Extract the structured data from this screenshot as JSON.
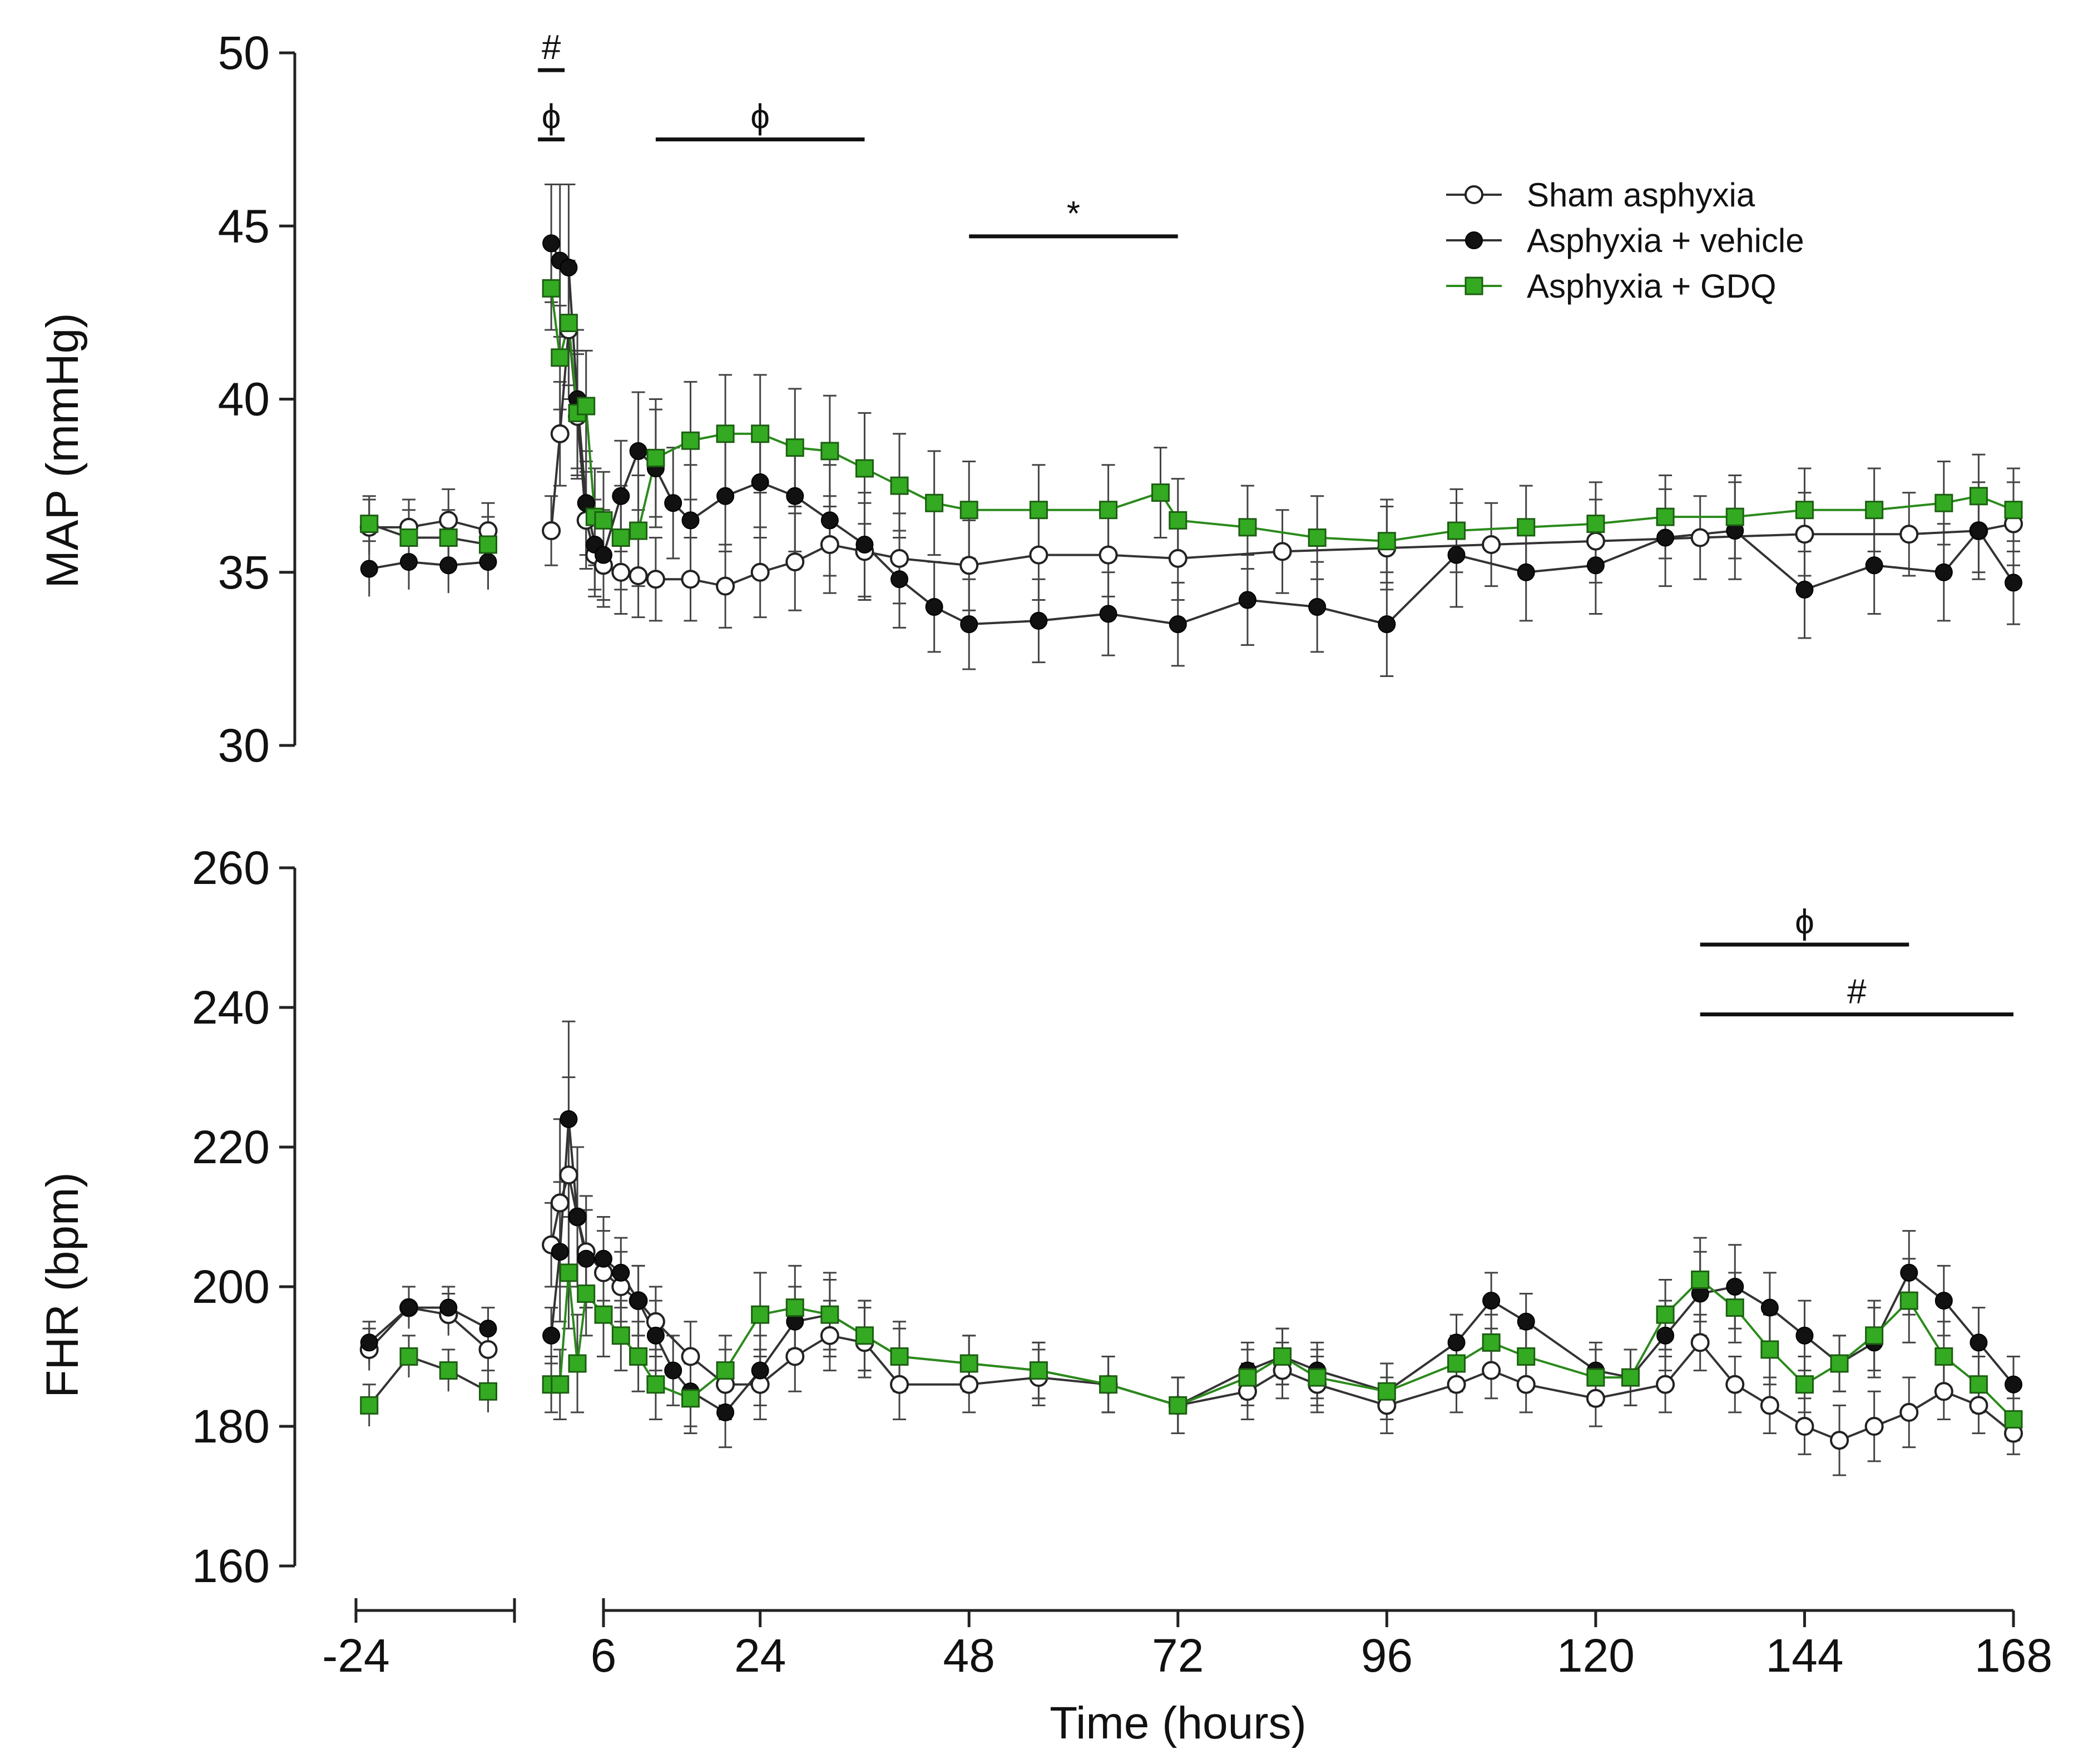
{
  "chart_data": [
    {
      "id": "map",
      "type": "line",
      "xlabel": "Time (hours)",
      "ylabel": "MAP (mmHg)",
      "ylim": [
        30,
        50
      ],
      "yticks": [
        "30",
        "35",
        "40",
        "45",
        "50"
      ],
      "series": [
        {
          "name": "Sham asphyxia",
          "marker": "open-circle",
          "color": "#ffffff",
          "baseline": {
            "x": [
              -22,
              -16,
              -10,
              -4
            ],
            "y": [
              36.3,
              36.3,
              36.5,
              36.2
            ],
            "err": [
              0.8,
              0.8,
              0.9,
              0.8
            ]
          },
          "points": {
            "x": [
              0,
              1,
              2,
              3,
              4,
              5,
              6,
              8,
              10,
              12,
              16,
              20,
              24,
              28,
              32,
              36,
              40,
              48,
              56,
              64,
              72,
              84,
              96,
              108,
              120,
              132,
              144,
              156,
              164,
              168
            ],
            "y": [
              36.2,
              39.0,
              42.0,
              39.5,
              36.5,
              35.5,
              35.2,
              35.0,
              34.9,
              34.8,
              34.8,
              34.6,
              35.0,
              35.3,
              35.8,
              35.6,
              35.4,
              35.2,
              35.5,
              35.5,
              35.4,
              35.6,
              35.7,
              35.8,
              35.9,
              36.0,
              36.1,
              36.1,
              36.2,
              36.4
            ],
            "err": [
              1.0,
              1.5,
              2.0,
              1.8,
              1.4,
              1.2,
              1.2,
              1.2,
              1.2,
              1.2,
              1.2,
              1.2,
              1.3,
              1.4,
              1.4,
              1.4,
              1.3,
              1.3,
              1.3,
              1.2,
              1.2,
              1.2,
              1.2,
              1.2,
              1.2,
              1.2,
              1.2,
              1.2,
              1.2,
              1.2
            ]
          }
        },
        {
          "name": "Asphyxia + vehicle",
          "marker": "filled-circle",
          "color": "#111111",
          "baseline": {
            "x": [
              -22,
              -16,
              -10,
              -4
            ],
            "y": [
              35.1,
              35.3,
              35.2,
              35.3
            ],
            "err": [
              0.8,
              0.8,
              0.8,
              0.8
            ]
          },
          "points": {
            "x": [
              0,
              1,
              2,
              3,
              4,
              5,
              6,
              8,
              10,
              12,
              14,
              16,
              20,
              24,
              28,
              32,
              36,
              40,
              44,
              48,
              56,
              64,
              72,
              80,
              88,
              96,
              104,
              112,
              120,
              128,
              136,
              144,
              152,
              160,
              164,
              168
            ],
            "y": [
              44.5,
              44.0,
              43.8,
              40.0,
              37.0,
              35.8,
              35.5,
              37.2,
              38.5,
              38.0,
              37.0,
              36.5,
              37.2,
              37.6,
              37.2,
              36.5,
              35.8,
              34.8,
              34.0,
              33.5,
              33.6,
              33.8,
              33.5,
              34.2,
              34.0,
              33.5,
              35.5,
              35.0,
              35.2,
              36.0,
              36.2,
              34.5,
              35.2,
              35.0,
              36.2,
              34.7
            ],
            "err": [
              1.7,
              2.2,
              2.4,
              2.0,
              1.5,
              1.3,
              1.3,
              1.6,
              1.7,
              1.7,
              1.6,
              1.6,
              1.6,
              1.6,
              1.6,
              1.6,
              1.5,
              1.4,
              1.3,
              1.3,
              1.2,
              1.2,
              1.2,
              1.3,
              1.3,
              1.5,
              1.5,
              1.4,
              1.4,
              1.4,
              1.4,
              1.4,
              1.4,
              1.4,
              1.4,
              1.2
            ]
          }
        },
        {
          "name": "Asphyxia + GDQ",
          "marker": "square",
          "color": "#33aa22",
          "baseline": {
            "x": [
              -22,
              -16,
              -10,
              -4
            ],
            "y": [
              36.4,
              36.0,
              36.0,
              35.8
            ],
            "err": [
              0.8,
              0.8,
              0.8,
              0.8
            ]
          },
          "points": {
            "x": [
              0,
              1,
              2,
              3,
              4,
              5,
              6,
              8,
              10,
              12,
              16,
              20,
              24,
              28,
              32,
              36,
              40,
              44,
              48,
              56,
              64,
              70,
              72,
              80,
              88,
              96,
              104,
              112,
              120,
              128,
              136,
              144,
              152,
              160,
              164,
              168
            ],
            "y": [
              43.2,
              41.2,
              42.2,
              39.6,
              39.8,
              36.6,
              36.5,
              36.0,
              36.2,
              38.3,
              38.8,
              39.0,
              39.0,
              38.6,
              38.5,
              38.0,
              37.5,
              37.0,
              36.8,
              36.8,
              36.8,
              37.3,
              36.5,
              36.3,
              36.0,
              35.9,
              36.2,
              36.3,
              36.4,
              36.6,
              36.6,
              36.8,
              36.8,
              37.0,
              37.2,
              36.8
            ],
            "err": [
              1.2,
              1.5,
              1.8,
              1.8,
              1.6,
              1.4,
              1.4,
              1.5,
              1.6,
              1.7,
              1.7,
              1.7,
              1.7,
              1.7,
              1.6,
              1.6,
              1.5,
              1.5,
              1.4,
              1.3,
              1.3,
              1.3,
              1.2,
              1.2,
              1.2,
              1.2,
              1.2,
              1.2,
              1.2,
              1.2,
              1.2,
              1.2,
              1.2,
              1.2,
              1.2,
              1.2
            ]
          }
        }
      ],
      "significance": [
        {
          "label": "#",
          "x_start": -0.5,
          "x_end": 0.5,
          "y": 49.5
        },
        {
          "label": "ϕ",
          "x_start": -0.5,
          "x_end": 0.5,
          "y": 47.5
        },
        {
          "label": "ϕ",
          "x_start": 12,
          "x_end": 36,
          "y": 47.5
        },
        {
          "label": "*",
          "x_start": 48,
          "x_end": 72,
          "y": 44.7
        }
      ],
      "legend": {
        "position": "top-right",
        "entries": [
          "Sham asphyxia",
          "Asphyxia + vehicle",
          "Asphyxia + GDQ"
        ]
      }
    },
    {
      "id": "fhr",
      "type": "line",
      "xlabel": "Time (hours)",
      "ylabel": "FHR (bpm)",
      "ylim": [
        160,
        260
      ],
      "yticks": [
        "160",
        "180",
        "200",
        "220",
        "240",
        "260"
      ],
      "xticks": [
        "-24",
        "6",
        "24",
        "48",
        "72",
        "96",
        "120",
        "144",
        "168"
      ],
      "series": [
        {
          "name": "Sham asphyxia",
          "marker": "open-circle",
          "color": "#ffffff",
          "baseline": {
            "x": [
              -22,
              -16,
              -10,
              -4
            ],
            "y": [
              191,
              197,
              196,
              191
            ],
            "err": [
              3,
              3,
              3,
              3
            ]
          },
          "points": {
            "x": [
              0,
              1,
              2,
              3,
              4,
              6,
              8,
              10,
              12,
              16,
              20,
              24,
              28,
              32,
              36,
              40,
              48,
              56,
              64,
              72,
              80,
              84,
              88,
              96,
              104,
              108,
              112,
              120,
              128,
              132,
              136,
              140,
              144,
              148,
              152,
              156,
              160,
              164,
              168
            ],
            "y": [
              206,
              212,
              216,
              210,
              205,
              202,
              200,
              198,
              195,
              190,
              186,
              186,
              190,
              193,
              192,
              186,
              186,
              187,
              186,
              183,
              185,
              188,
              186,
              183,
              186,
              188,
              186,
              184,
              186,
              192,
              186,
              183,
              180,
              178,
              180,
              182,
              185,
              183,
              179
            ],
            "err": [
              6,
              12,
              14,
              10,
              8,
              6,
              5,
              5,
              5,
              5,
              5,
              5,
              5,
              5,
              5,
              5,
              4,
              4,
              4,
              4,
              4,
              4,
              4,
              4,
              4,
              4,
              4,
              4,
              4,
              4,
              4,
              4,
              4,
              5,
              5,
              5,
              4,
              4,
              3
            ]
          }
        },
        {
          "name": "Asphyxia + vehicle",
          "marker": "filled-circle",
          "color": "#111111",
          "baseline": {
            "x": [
              -22,
              -16,
              -10,
              -4
            ],
            "y": [
              192,
              197,
              197,
              194
            ],
            "err": [
              3,
              3,
              3,
              3
            ]
          },
          "points": {
            "x": [
              0,
              1,
              2,
              3,
              4,
              6,
              8,
              10,
              12,
              14,
              16,
              20,
              24,
              28,
              32,
              36,
              40,
              48,
              56,
              64,
              72,
              80,
              84,
              88,
              96,
              104,
              108,
              112,
              120,
              124,
              128,
              132,
              136,
              140,
              144,
              148,
              152,
              156,
              160,
              164,
              168
            ],
            "y": [
              193,
              205,
              224,
              210,
              204,
              204,
              202,
              198,
              193,
              188,
              185,
              182,
              188,
              195,
              196,
              193,
              190,
              189,
              188,
              186,
              183,
              188,
              190,
              188,
              185,
              192,
              198,
              195,
              188,
              187,
              193,
              199,
              200,
              197,
              193,
              189,
              192,
              202,
              198,
              192,
              186
            ],
            "err": [
              4,
              10,
              14,
              10,
              7,
              6,
              5,
              5,
              5,
              5,
              5,
              5,
              5,
              5,
              5,
              5,
              4,
              4,
              4,
              4,
              4,
              4,
              4,
              4,
              4,
              4,
              4,
              4,
              4,
              4,
              5,
              6,
              6,
              5,
              5,
              4,
              5,
              6,
              5,
              5,
              4
            ]
          }
        },
        {
          "name": "Asphyxia + GDQ",
          "marker": "square",
          "color": "#33aa22",
          "baseline": {
            "x": [
              -22,
              -16,
              -10,
              -4
            ],
            "y": [
              183,
              190,
              188,
              185
            ],
            "err": [
              3,
              3,
              3,
              3
            ]
          },
          "points": {
            "x": [
              0,
              1,
              2,
              3,
              4,
              6,
              8,
              10,
              12,
              16,
              20,
              24,
              28,
              32,
              36,
              40,
              48,
              56,
              64,
              72,
              80,
              84,
              88,
              96,
              104,
              108,
              112,
              120,
              124,
              128,
              132,
              136,
              140,
              144,
              148,
              152,
              156,
              160,
              164,
              168
            ],
            "y": [
              186,
              186,
              202,
              189,
              199,
              196,
              193,
              190,
              186,
              184,
              188,
              196,
              197,
              196,
              193,
              190,
              189,
              188,
              186,
              183,
              187,
              190,
              187,
              185,
              189,
              192,
              190,
              187,
              187,
              196,
              201,
              197,
              191,
              186,
              189,
              193,
              198,
              190,
              186,
              181
            ],
            "err": [
              4,
              5,
              8,
              7,
              6,
              6,
              5,
              5,
              5,
              5,
              5,
              6,
              6,
              6,
              5,
              5,
              4,
              4,
              4,
              4,
              4,
              4,
              4,
              4,
              4,
              4,
              4,
              4,
              4,
              5,
              6,
              5,
              5,
              4,
              4,
              5,
              6,
              5,
              4,
              3
            ]
          }
        }
      ],
      "significance": [
        {
          "label": "ϕ",
          "x_start": 132,
          "x_end": 156,
          "y": 249
        },
        {
          "label": "#",
          "x_start": 132,
          "x_end": 168,
          "y": 239
        }
      ]
    }
  ]
}
